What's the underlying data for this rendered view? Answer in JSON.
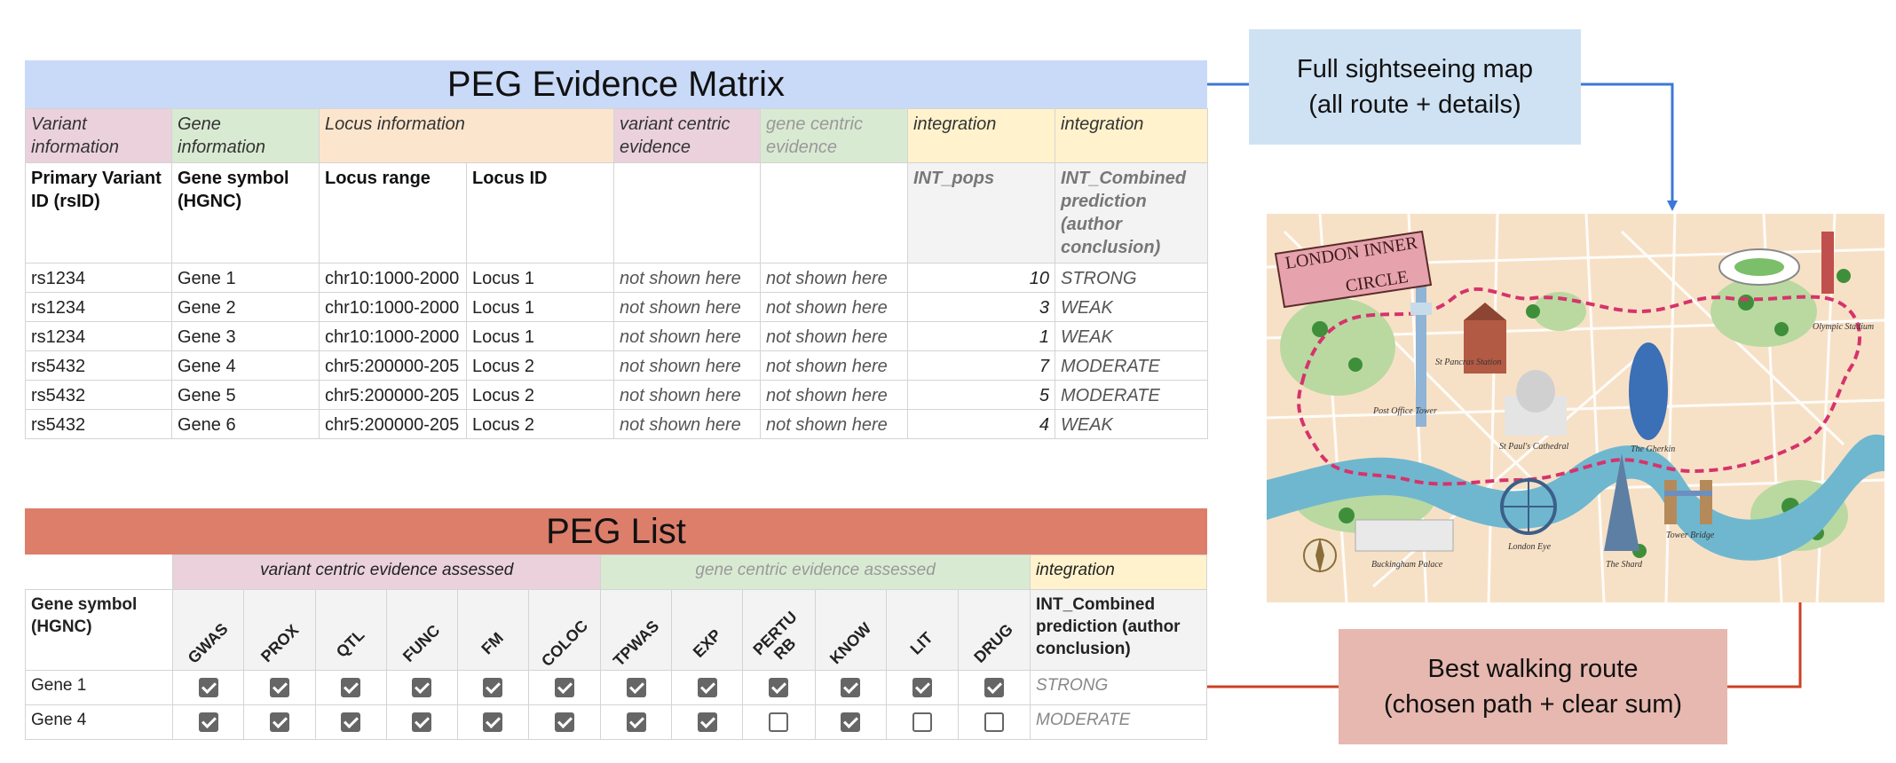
{
  "matrix": {
    "title": "PEG Evidence Matrix",
    "categories": [
      "Variant information",
      "Gene information",
      "Locus information",
      "variant centric evidence",
      "gene centric evidence",
      "integration",
      "integration"
    ],
    "headers": [
      "Primary Variant ID (rsID)",
      "Gene symbol (HGNC)",
      "Locus range",
      "Locus ID",
      "",
      "",
      "INT_pops",
      "INT_Combined prediction (author conclusion)"
    ],
    "rows": [
      {
        "rsid": "rs1234",
        "gene": "Gene 1",
        "range": "chr10:1000-2000",
        "locus": "Locus 1",
        "vce": "not shown here",
        "gce": "not shown here",
        "pops": "10",
        "pred": "STRONG"
      },
      {
        "rsid": "rs1234",
        "gene": "Gene 2",
        "range": "chr10:1000-2000",
        "locus": "Locus 1",
        "vce": "not shown here",
        "gce": "not shown here",
        "pops": "3",
        "pred": "WEAK"
      },
      {
        "rsid": "rs1234",
        "gene": "Gene 3",
        "range": "chr10:1000-2000",
        "locus": "Locus 1",
        "vce": "not shown here",
        "gce": "not shown here",
        "pops": "1",
        "pred": "WEAK"
      },
      {
        "rsid": "rs5432",
        "gene": "Gene 4",
        "range": "chr5:200000-205",
        "locus": "Locus 2",
        "vce": "not shown here",
        "gce": "not shown here",
        "pops": "7",
        "pred": "MODERATE"
      },
      {
        "rsid": "rs5432",
        "gene": "Gene 5",
        "range": "chr5:200000-205",
        "locus": "Locus 2",
        "vce": "not shown here",
        "gce": "not shown here",
        "pops": "5",
        "pred": "MODERATE"
      },
      {
        "rsid": "rs5432",
        "gene": "Gene 6",
        "range": "chr5:200000-205",
        "locus": "Locus 2",
        "vce": "not shown here",
        "gce": "not shown here",
        "pops": "4",
        "pred": "WEAK"
      }
    ]
  },
  "list": {
    "title": "PEG List",
    "categories": [
      "variant centric evidence assessed",
      "gene centric evidence assessed",
      "integration"
    ],
    "gene_header": "Gene symbol (HGNC)",
    "evidence_columns": [
      "GWAS",
      "PROX",
      "QTL",
      "FUNC",
      "FM",
      "COLOC",
      "TPWAS",
      "EXP",
      "PERTU RB",
      "KNOW",
      "LIT",
      "DRUG"
    ],
    "prediction_header": "INT_Combined prediction (author conclusion)",
    "rows": [
      {
        "gene": "Gene 1",
        "checks": [
          true,
          true,
          true,
          true,
          true,
          true,
          true,
          true,
          true,
          true,
          true,
          true
        ],
        "pred": "STRONG"
      },
      {
        "gene": "Gene 4",
        "checks": [
          true,
          true,
          true,
          true,
          true,
          true,
          true,
          true,
          false,
          true,
          false,
          false
        ],
        "pred": "MODERATE"
      }
    ]
  },
  "callouts": {
    "full_map_line1": "Full sightseeing map",
    "full_map_line2": "(all route + details)",
    "best_route_line1": "Best walking route",
    "best_route_line2": "(chosen path + clear sum)"
  },
  "map": {
    "banner_line1": "LONDON INNER",
    "banner_line2": "CIRCLE",
    "places": [
      "St Pancras Station",
      "Post Office Tower",
      "St Paul's Cathedral",
      "The Gherkin",
      "Olympic Stadium",
      "Tower Bridge",
      "The Shard",
      "London Eye",
      "Buckingham Palace"
    ]
  },
  "colors": {
    "matrix_banner": "#c9daf8",
    "list_banner": "#dd7e6b",
    "full_map_callout": "#cfe2f3",
    "best_route_callout": "#e6b8af",
    "arrow_blue": "#3c78d8",
    "arrow_red": "#cc4125"
  }
}
